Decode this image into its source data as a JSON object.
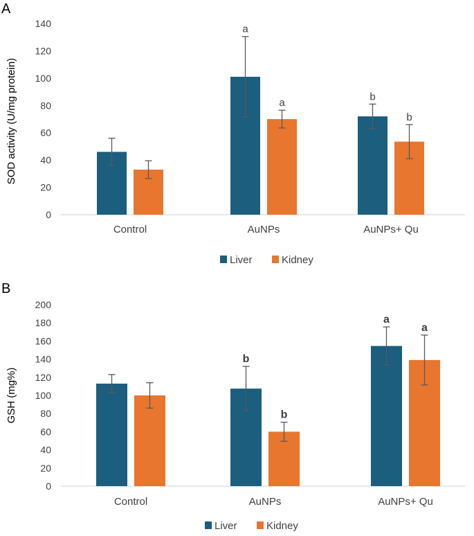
{
  "colors": {
    "liver": "#1B5E7E",
    "kidney": "#E8762E",
    "axis": "#808080",
    "grid": "#D9D9D9",
    "text": "#404040",
    "annotation": "#404040",
    "error": "#595959",
    "panel_label": "#000000"
  },
  "chart_data": [
    {
      "type": "bar",
      "panel_label": "A",
      "title": "",
      "xlabel": "",
      "ylabel": "SOD activity (U/mg protein)",
      "ylim": [
        0,
        140
      ],
      "yticks": [
        0,
        20,
        40,
        60,
        80,
        100,
        120,
        140
      ],
      "grid": false,
      "legend_position": "bottom",
      "categories": [
        "Control",
        "AuNPs",
        "AuNPs+ Qu"
      ],
      "series": [
        {
          "name": "Liver",
          "color_key": "liver",
          "values": [
            46,
            101,
            72
          ],
          "errors": [
            10,
            29.5,
            9
          ],
          "annotations": [
            "",
            "a",
            "b"
          ]
        },
        {
          "name": "Kidney",
          "color_key": "kidney",
          "values": [
            33,
            70,
            53.5
          ],
          "errors": [
            6.5,
            6.5,
            12.5
          ],
          "annotations": [
            "",
            "a",
            "b"
          ]
        }
      ]
    },
    {
      "type": "bar",
      "panel_label": "B",
      "title": "",
      "xlabel": "",
      "ylabel": "GSH (mg%)",
      "ylim": [
        0,
        200
      ],
      "yticks": [
        0,
        20,
        40,
        60,
        80,
        100,
        120,
        140,
        160,
        180,
        200
      ],
      "grid": false,
      "legend_position": "bottom",
      "categories": [
        "Control",
        "AuNPs",
        "AuNPs+ Qu"
      ],
      "series": [
        {
          "name": "Liver",
          "color_key": "liver",
          "values": [
            113,
            107.5,
            154.5
          ],
          "errors": [
            10,
            24.5,
            21
          ],
          "annotations": [
            "",
            "b",
            "a"
          ]
        },
        {
          "name": "Kidney",
          "color_key": "kidney",
          "values": [
            100,
            60,
            139
          ],
          "errors": [
            14,
            10.5,
            27.5
          ],
          "annotations": [
            "",
            "b",
            "a"
          ]
        }
      ]
    }
  ]
}
